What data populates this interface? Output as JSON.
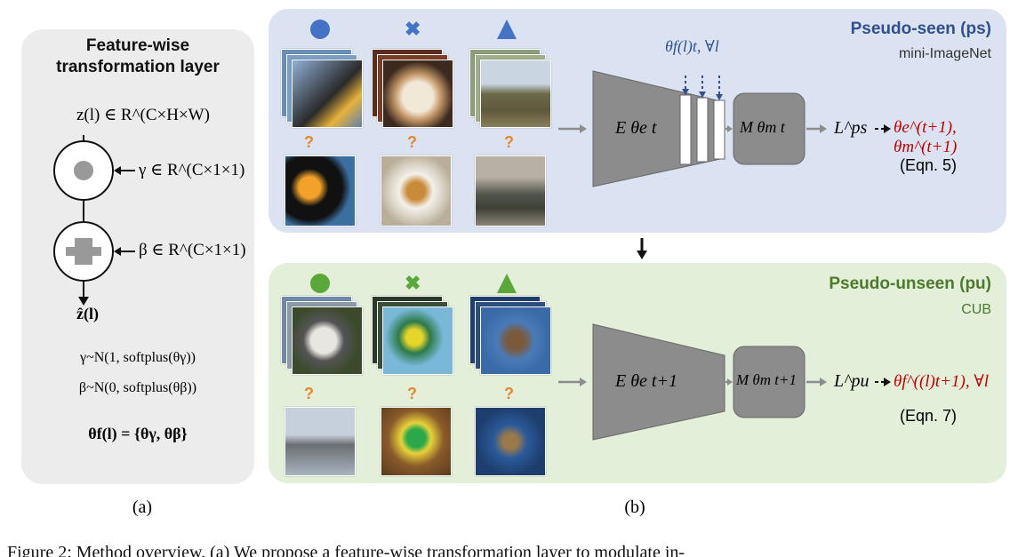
{
  "panel_a": {
    "title_line1": "Feature-wise",
    "title_line2": "transformation layer",
    "z_in": "z(l) ∈ R^(C×H×W)",
    "gamma_def": "γ ∈ R^(C×1×1)",
    "beta_def": "β ∈ R^(C×1×1)",
    "z_out": "ẑ(l)",
    "gamma_dist": "γ~N(1, softplus(θγ))",
    "beta_dist": "β~N(0, softplus(θβ))",
    "theta_def": "θf(l) = {θγ, θβ}"
  },
  "panel_ps": {
    "title": "Pseudo-seen (ps)",
    "dataset": "mini-ImageNet",
    "film_params": "θf(l)t, ∀l",
    "encoder": "E θe t",
    "metric": "M θm t",
    "loss": "L^ps",
    "update": "θe^(t+1), θm^(t+1)",
    "eqn": "(Eqn. 5)",
    "query_marks": [
      "?",
      "?",
      "?"
    ]
  },
  "panel_pu": {
    "title": "Pseudo-unseen (pu)",
    "dataset": "CUB",
    "encoder": "E θe t+1",
    "metric": "M θm t+1",
    "loss": "L^pu",
    "update": "θf^((l)t+1), ∀l",
    "eqn": "(Eqn. 7)",
    "query_marks": [
      "?",
      "?",
      "?"
    ]
  },
  "sublabel_a": "(a)",
  "sublabel_b": "(b)",
  "caption": "Figure 2: Method overview. (a) We propose a feature-wise transformation layer to modulate in-",
  "colors": {
    "ps_bg": "#dbe3f2",
    "pu_bg": "#e3efd9",
    "ps_title": "#2f4f8f",
    "pu_title": "#4b7a2c",
    "update_red": "#c00000",
    "query_orange": "#e8872a"
  }
}
